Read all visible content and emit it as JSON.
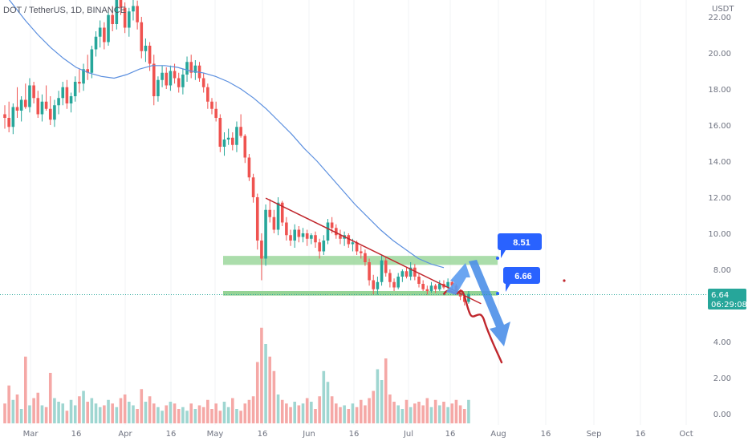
{
  "header": {
    "symbol_title": "DOT / TetherUS, 1D, BINANCE",
    "currency": "USDT"
  },
  "colors": {
    "up": "#26a69a",
    "down": "#ef5350",
    "vol_up": "#9fd6d1",
    "vol_down": "#f5a8a6",
    "ma_line": "#5b8fdf",
    "trendline": "#c0272d",
    "support_zone": "#8fd18f",
    "forecast_up": "#5b9bf0",
    "forecast_down": "#4d8fe8",
    "label_bg": "#2962ff",
    "price_badge": "#26a69a",
    "dashed_price": "#26a69a"
  },
  "price_axis": {
    "ticks": [
      "22.00",
      "20.00",
      "18.00",
      "16.00",
      "14.00",
      "12.00",
      "10.00",
      "8.00",
      "4.00",
      "2.00",
      "0.00"
    ],
    "current_price": "6.64",
    "countdown": "06:29:08"
  },
  "time_axis": {
    "labels": [
      "Mar",
      "16",
      "Apr",
      "16",
      "May",
      "16",
      "Jun",
      "16",
      "Jul",
      "16",
      "Aug",
      "16",
      "Sep",
      "16",
      "Oct"
    ]
  },
  "annotations": {
    "upper_target": "8.51",
    "lower_target": "6.66"
  },
  "chart_data": {
    "type": "candlestick",
    "title": "DOT / TetherUS, 1D, BINANCE",
    "ylabel": "USDT",
    "ylim": [
      0,
      22.5
    ],
    "ohlc": [
      [
        16.6,
        17.1,
        15.8,
        16.4
      ],
      [
        16.4,
        17.3,
        15.6,
        15.9
      ],
      [
        15.9,
        17.2,
        15.5,
        17.0
      ],
      [
        17.0,
        18.1,
        16.4,
        16.8
      ],
      [
        16.8,
        17.6,
        16.2,
        17.4
      ],
      [
        17.4,
        18.3,
        16.9,
        17.0
      ],
      [
        17.0,
        18.6,
        16.7,
        18.2
      ],
      [
        18.2,
        18.4,
        17.2,
        17.5
      ],
      [
        17.5,
        17.9,
        16.4,
        16.6
      ],
      [
        16.6,
        17.7,
        16.2,
        17.3
      ],
      [
        17.3,
        18.2,
        16.8,
        16.9
      ],
      [
        16.9,
        17.6,
        16.0,
        16.3
      ],
      [
        16.3,
        17.4,
        15.9,
        17.1
      ],
      [
        17.1,
        17.9,
        16.6,
        17.5
      ],
      [
        17.5,
        18.4,
        17.1,
        18.1
      ],
      [
        18.1,
        18.5,
        16.9,
        17.2
      ],
      [
        17.2,
        17.8,
        16.7,
        17.6
      ],
      [
        17.6,
        18.7,
        17.3,
        18.4
      ],
      [
        18.4,
        19.1,
        17.8,
        18.3
      ],
      [
        18.3,
        19.4,
        17.9,
        19.1
      ],
      [
        19.1,
        19.9,
        18.5,
        18.9
      ],
      [
        18.9,
        20.4,
        18.6,
        20.2
      ],
      [
        20.2,
        21.2,
        19.8,
        20.9
      ],
      [
        20.9,
        21.8,
        20.3,
        21.4
      ],
      [
        21.4,
        21.7,
        20.2,
        20.6
      ],
      [
        20.6,
        22.4,
        20.4,
        22.1
      ],
      [
        22.1,
        22.6,
        21.2,
        21.6
      ],
      [
        21.6,
        23.5,
        21.3,
        23.1
      ],
      [
        23.1,
        23.9,
        22.1,
        22.5
      ],
      [
        22.5,
        22.8,
        21.1,
        21.4
      ],
      [
        21.4,
        22.5,
        20.9,
        22.3
      ],
      [
        22.3,
        23.3,
        21.8,
        22.6
      ],
      [
        22.6,
        22.9,
        21.3,
        21.7
      ],
      [
        21.7,
        22.0,
        19.7,
        20.1
      ],
      [
        20.1,
        20.8,
        19.5,
        20.4
      ],
      [
        20.4,
        20.6,
        19.0,
        19.4
      ],
      [
        19.4,
        19.9,
        17.1,
        17.6
      ],
      [
        17.6,
        18.7,
        17.3,
        18.5
      ],
      [
        18.5,
        19.3,
        18.1,
        18.9
      ],
      [
        18.9,
        19.2,
        18.0,
        18.2
      ],
      [
        18.2,
        19.3,
        17.9,
        19.0
      ],
      [
        19.0,
        19.4,
        18.3,
        18.6
      ],
      [
        18.6,
        18.9,
        17.8,
        18.1
      ],
      [
        18.1,
        19.1,
        17.7,
        18.8
      ],
      [
        18.8,
        19.8,
        18.4,
        19.5
      ],
      [
        19.5,
        19.9,
        18.6,
        18.9
      ],
      [
        18.9,
        19.6,
        18.5,
        19.3
      ],
      [
        19.3,
        19.5,
        18.4,
        18.6
      ],
      [
        18.6,
        18.9,
        17.8,
        18.1
      ],
      [
        18.1,
        18.3,
        16.9,
        17.3
      ],
      [
        17.3,
        17.5,
        16.6,
        16.9
      ],
      [
        16.9,
        17.3,
        16.2,
        16.4
      ],
      [
        16.4,
        16.6,
        14.5,
        14.8
      ],
      [
        14.8,
        15.6,
        14.3,
        15.2
      ],
      [
        15.2,
        15.8,
        14.9,
        15.3
      ],
      [
        15.3,
        15.6,
        14.6,
        14.9
      ],
      [
        14.9,
        16.2,
        14.5,
        15.9
      ],
      [
        15.9,
        16.6,
        15.3,
        15.4
      ],
      [
        15.4,
        15.5,
        13.9,
        14.2
      ],
      [
        14.2,
        14.4,
        12.9,
        13.1
      ],
      [
        13.1,
        13.3,
        11.7,
        12.0
      ],
      [
        12.0,
        12.2,
        9.1,
        9.6
      ],
      [
        9.6,
        10.0,
        7.4,
        8.6
      ],
      [
        8.6,
        11.6,
        8.2,
        11.3
      ],
      [
        11.3,
        11.9,
        10.6,
        10.9
      ],
      [
        10.9,
        11.3,
        10.0,
        10.2
      ],
      [
        10.2,
        12.0,
        9.9,
        11.7
      ],
      [
        11.7,
        11.8,
        10.4,
        10.6
      ],
      [
        10.6,
        10.9,
        9.6,
        9.9
      ],
      [
        9.9,
        10.2,
        9.3,
        9.6
      ],
      [
        9.6,
        10.5,
        9.2,
        10.2
      ],
      [
        10.2,
        10.4,
        9.5,
        9.8
      ],
      [
        9.8,
        10.3,
        9.5,
        10.0
      ],
      [
        10.0,
        10.2,
        9.3,
        9.7
      ],
      [
        9.7,
        10.0,
        9.4,
        9.9
      ],
      [
        9.9,
        10.1,
        9.2,
        9.5
      ],
      [
        9.5,
        9.7,
        8.6,
        9.0
      ],
      [
        9.0,
        9.9,
        8.8,
        9.6
      ],
      [
        9.6,
        10.8,
        9.4,
        10.6
      ],
      [
        10.6,
        10.9,
        10.0,
        10.3
      ],
      [
        10.3,
        10.5,
        9.7,
        9.9
      ],
      [
        9.9,
        10.2,
        9.4,
        9.7
      ],
      [
        9.7,
        10.1,
        9.3,
        9.9
      ],
      [
        9.9,
        10.0,
        9.2,
        9.4
      ],
      [
        9.4,
        9.7,
        9.0,
        9.5
      ],
      [
        9.5,
        9.6,
        8.8,
        9.0
      ],
      [
        9.0,
        9.3,
        8.6,
        8.9
      ],
      [
        8.9,
        9.1,
        8.2,
        8.4
      ],
      [
        8.4,
        8.6,
        7.1,
        7.4
      ],
      [
        7.4,
        7.7,
        6.6,
        6.9
      ],
      [
        6.9,
        7.6,
        6.6,
        7.3
      ],
      [
        7.3,
        8.8,
        7.1,
        8.5
      ],
      [
        8.5,
        8.7,
        7.6,
        7.8
      ],
      [
        7.8,
        8.0,
        7.0,
        7.3
      ],
      [
        7.3,
        7.5,
        6.8,
        7.0
      ],
      [
        7.0,
        7.8,
        6.9,
        7.6
      ],
      [
        7.6,
        8.0,
        7.3,
        7.9
      ],
      [
        7.9,
        8.1,
        7.5,
        7.6
      ],
      [
        7.6,
        8.4,
        7.4,
        8.1
      ],
      [
        8.1,
        8.3,
        7.4,
        7.6
      ],
      [
        7.6,
        7.8,
        7.0,
        7.2
      ],
      [
        7.2,
        7.4,
        6.8,
        6.9
      ],
      [
        6.9,
        7.1,
        6.6,
        6.8
      ],
      [
        6.8,
        7.3,
        6.7,
        7.1
      ],
      [
        7.1,
        7.2,
        6.7,
        6.9
      ],
      [
        6.9,
        7.4,
        6.8,
        7.2
      ],
      [
        7.2,
        7.4,
        6.9,
        7.0
      ],
      [
        7.0,
        7.5,
        6.9,
        7.3
      ],
      [
        7.3,
        7.4,
        6.9,
        7.1
      ],
      [
        7.1,
        7.2,
        6.6,
        6.7
      ],
      [
        6.7,
        6.9,
        6.3,
        6.5
      ],
      [
        6.5,
        6.6,
        6.0,
        6.2
      ],
      [
        6.2,
        6.8,
        6.1,
        6.64
      ]
    ],
    "volume": [
      1.1,
      2.1,
      1.3,
      1.6,
      0.8,
      3.7,
      1.0,
      1.4,
      1.7,
      1.0,
      0.9,
      2.8,
      1.4,
      1.2,
      1.1,
      0.7,
      1.3,
      1.0,
      1.5,
      1.8,
      1.2,
      1.4,
      1.1,
      0.9,
      1.0,
      1.3,
      1.1,
      0.9,
      1.4,
      1.6,
      1.2,
      1.0,
      0.8,
      1.9,
      1.2,
      1.5,
      1.1,
      0.9,
      0.7,
      1.0,
      1.2,
      1.1,
      0.8,
      0.9,
      0.7,
      1.1,
      0.8,
      1.0,
      0.9,
      1.3,
      0.8,
      1.1,
      0.7,
      1.2,
      0.9,
      1.4,
      0.8,
      0.7,
      1.1,
      1.3,
      1.5,
      3.4,
      5.3,
      4.4,
      3.7,
      2.9,
      1.6,
      1.3,
      1.1,
      0.9,
      1.2,
      1.0,
      1.1,
      1.4,
      1.2,
      0.8,
      1.5,
      2.9,
      2.3,
      1.5,
      1.1,
      0.9,
      1.0,
      0.8,
      1.1,
      0.9,
      1.3,
      1.0,
      1.4,
      1.8,
      3.0,
      2.4,
      3.6,
      1.6,
      1.2,
      1.0,
      0.8,
      1.3,
      0.9,
      1.1,
      1.2,
      1.0,
      1.4,
      0.9,
      1.3,
      1.0,
      1.2,
      0.9,
      1.1,
      1.3,
      1.0,
      0.8,
      1.3
    ],
    "moving_average": [
      23.6,
      22.7,
      21.8,
      21.0,
      20.3,
      19.7,
      19.2,
      18.9,
      18.7,
      18.6,
      18.8,
      19.1,
      19.3,
      19.3,
      19.2,
      19.0,
      18.9,
      18.7,
      18.4,
      18.0,
      17.5,
      16.9,
      16.2,
      15.5,
      14.7,
      14.0,
      13.2,
      12.4,
      11.6,
      10.9,
      10.2,
      9.6,
      9.1,
      8.6,
      8.3,
      8.1
    ],
    "series": [
      {
        "values": "ohlc"
      },
      {
        "values": "volume"
      },
      {
        "values": "moving_average"
      }
    ],
    "levels": {
      "resistance_zone": [
        8.25,
        8.75
      ],
      "support_zone": [
        6.55,
        6.8
      ],
      "trendline": [
        [
          63,
          11.95
        ],
        [
          115,
          6.1
        ]
      ],
      "bullish_target": 8.51,
      "bearish_target": 6.66,
      "bearish_projection": [
        [
          113,
          6.64
        ],
        [
          118,
          6.45
        ],
        [
          121,
          5.3
        ],
        [
          126,
          3.0
        ]
      ]
    }
  }
}
